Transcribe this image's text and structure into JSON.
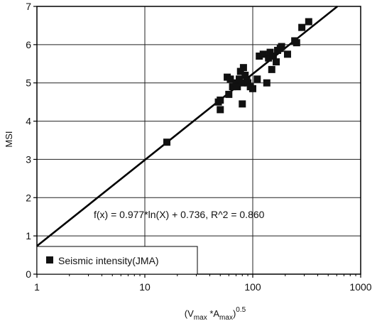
{
  "chart_data": {
    "type": "scatter",
    "xscale": "log",
    "xlim": [
      1,
      1000
    ],
    "ylim": [
      0,
      7
    ],
    "grid": true,
    "ylabel": "MSI",
    "xlabel": {
      "pre": "(V",
      "sub1": "max",
      "mid": " *A",
      "sub2": "max",
      "post": ")",
      "sup": "0.5"
    },
    "x_ticks": [
      1,
      10,
      100,
      1000
    ],
    "x_tick_labels": [
      "1",
      "10",
      "100",
      "1000"
    ],
    "y_ticks": [
      0,
      1,
      2,
      3,
      4,
      5,
      6,
      7
    ],
    "y_tick_labels": [
      "0",
      "1",
      "2",
      "3",
      "4",
      "5",
      "6",
      "7"
    ],
    "legend": {
      "position": "bottom-left",
      "label": "Seismic intensity(JMA)"
    },
    "annotation": "f(x) = 0.977*ln(X) + 0.736, R^2 = 0.860",
    "fit": {
      "type": "logarithmic",
      "a": 0.977,
      "b": 0.736
    },
    "series": [
      {
        "marker": "square",
        "points": [
          [
            16,
            3.45
          ],
          [
            48,
            4.5
          ],
          [
            50,
            4.3
          ],
          [
            50,
            4.55
          ],
          [
            58,
            5.15
          ],
          [
            62,
            5.1
          ],
          [
            60,
            4.7
          ],
          [
            65,
            4.9
          ],
          [
            70,
            5.0
          ],
          [
            72,
            4.9
          ],
          [
            75,
            5.1
          ],
          [
            77,
            5.3
          ],
          [
            80,
            5.0
          ],
          [
            80,
            4.45
          ],
          [
            82,
            5.4
          ],
          [
            85,
            5.2
          ],
          [
            88,
            5.05
          ],
          [
            90,
            5.0
          ],
          [
            95,
            4.9
          ],
          [
            100,
            4.85
          ],
          [
            110,
            5.1
          ],
          [
            115,
            5.7
          ],
          [
            125,
            5.75
          ],
          [
            135,
            5.0
          ],
          [
            140,
            5.65
          ],
          [
            145,
            5.8
          ],
          [
            150,
            5.35
          ],
          [
            155,
            5.7
          ],
          [
            165,
            5.55
          ],
          [
            170,
            5.85
          ],
          [
            180,
            5.9
          ],
          [
            185,
            5.95
          ],
          [
            210,
            5.75
          ],
          [
            245,
            6.1
          ],
          [
            255,
            6.05
          ],
          [
            285,
            6.45
          ],
          [
            330,
            6.6
          ]
        ]
      }
    ]
  }
}
